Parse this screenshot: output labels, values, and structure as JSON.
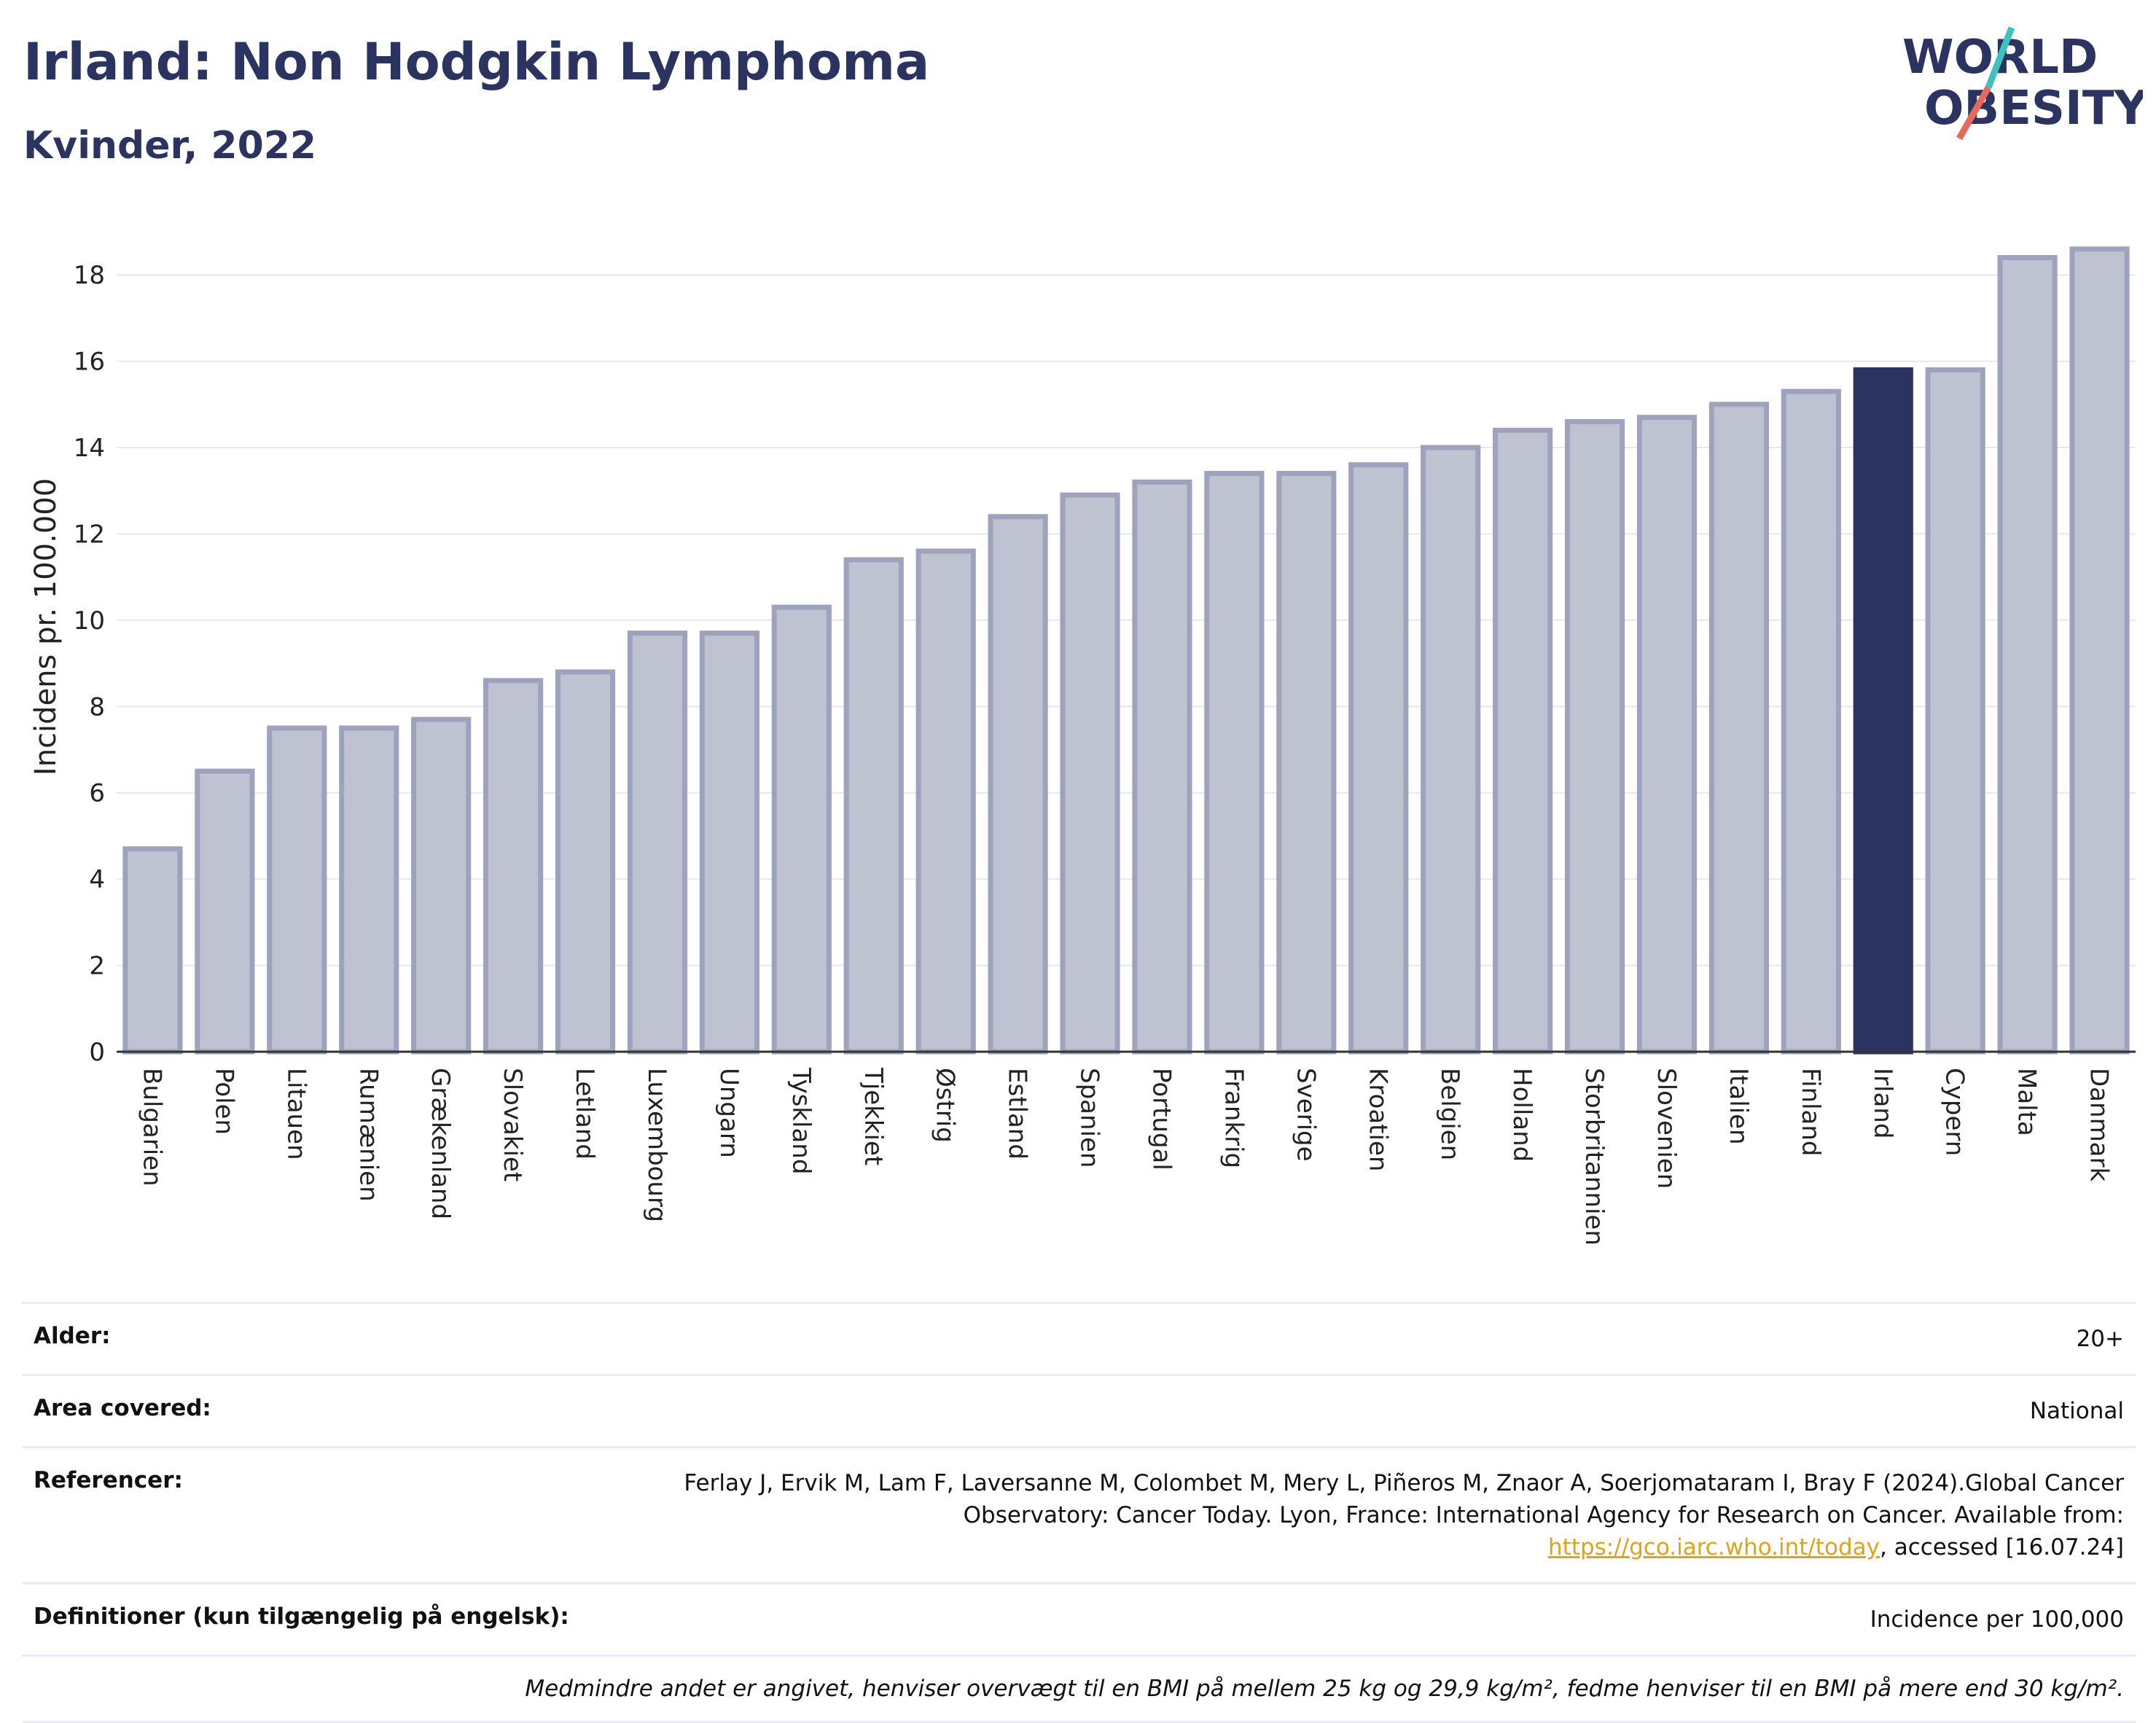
{
  "header": {
    "title": "Irland: Non Hodgkin Lymphoma",
    "subtitle": "Kvinder, 2022"
  },
  "logo": {
    "line1": "WORLD",
    "line2": "OBESITY"
  },
  "chart_data": {
    "type": "bar",
    "ylabel": "Incidens pr. 100.000",
    "ylim": [
      0,
      19
    ],
    "yticks": [
      0,
      2,
      4,
      6,
      8,
      10,
      12,
      14,
      16,
      18
    ],
    "grid": true,
    "categories": [
      "Bulgarien",
      "Polen",
      "Litauen",
      "Rumænien",
      "Grækenland",
      "Slovakiet",
      "Letland",
      "Luxembourg",
      "Ungarn",
      "Tyskland",
      "Tjekkiet",
      "Østrig",
      "Estland",
      "Spanien",
      "Portugal",
      "Frankrig",
      "Sverige",
      "Kroatien",
      "Belgien",
      "Holland",
      "Storbritannien",
      "Slovenien",
      "Italien",
      "Finland",
      "Irland",
      "Cypern",
      "Malta",
      "Danmark"
    ],
    "values": [
      4.7,
      6.5,
      7.5,
      7.5,
      7.7,
      8.6,
      8.8,
      9.7,
      9.7,
      10.3,
      11.4,
      11.6,
      12.4,
      12.9,
      13.2,
      13.4,
      13.4,
      13.6,
      14.0,
      14.4,
      14.6,
      14.7,
      15.0,
      15.3,
      15.8,
      15.8,
      18.4,
      18.6
    ],
    "highlight": "Irland",
    "colors": {
      "bar": "#bfc2d0",
      "bar_edge": "#9ea3bd",
      "highlight": "#2b3360"
    }
  },
  "info": {
    "rows": [
      {
        "label": "Alder:",
        "value": "20+"
      },
      {
        "label": "Area covered:",
        "value": "National"
      },
      {
        "label": "Referencer:",
        "value_pre": "Ferlay J, Ervik M, Lam F, Laversanne M, Colombet M, Mery L, Piñeros M, Znaor A, Soerjomataram I, Bray F (2024).Global Cancer Observatory: Cancer Today. Lyon, France: International Agency for Research on Cancer. Available from: ",
        "link": "https://gco.iarc.who.int/today",
        "value_post": ", accessed [16.07.24]"
      },
      {
        "label": "Definitioner (kun tilgængelig på engelsk):",
        "value": "Incidence per 100,000"
      }
    ],
    "note": "Medmindre andet er angivet, henviser overvægt til en BMI på mellem 25 kg og 29,9 kg/m², fedme henviser til en BMI på mere end 30 kg/m²."
  }
}
